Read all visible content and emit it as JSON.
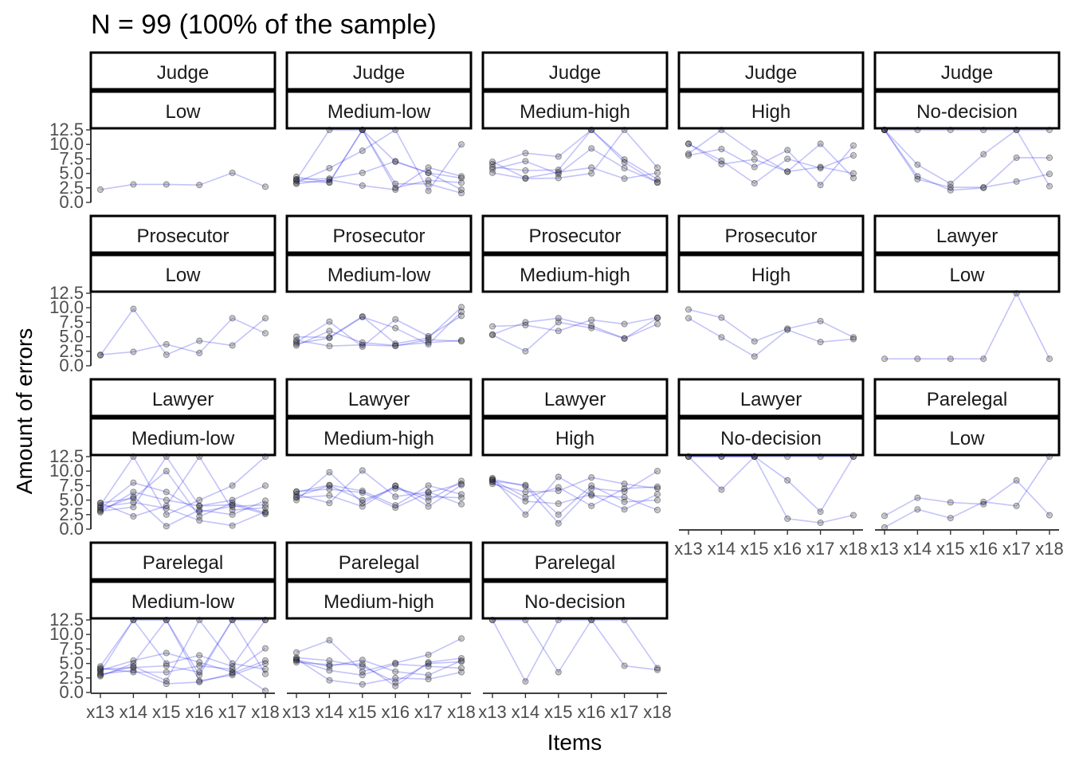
{
  "chart_data": {
    "type": "line",
    "title": "N = 99 (100% of the sample)",
    "xlabel": "Items",
    "ylabel": "Amount of errors",
    "x_ticks": [
      "x13",
      "x14",
      "x15",
      "x16",
      "x17",
      "x18"
    ],
    "y_ticks": [
      "0.0",
      "2.5",
      "5.0",
      "7.5",
      "10.0",
      "12.5"
    ],
    "ylim": [
      0,
      12.5
    ],
    "line_color": "#2828eb",
    "point_color": "#1e1e1e",
    "panels": [
      {
        "row": 0,
        "col": 0,
        "strip": [
          "Judge",
          "Low"
        ],
        "series": [
          [
            2.2,
            3.1,
            3.1,
            3.0,
            5.1,
            2.7
          ]
        ]
      },
      {
        "row": 0,
        "col": 1,
        "strip": [
          "Judge",
          "Medium-low"
        ],
        "series": [
          [
            4.4,
            3.5,
            12.5,
            7.0,
            5.1,
            4.2
          ],
          [
            3.9,
            12.5,
            12.5,
            3.2,
            3.2,
            1.6
          ],
          [
            3.4,
            5.9,
            8.9,
            12.5,
            2.0,
            10.0
          ],
          [
            4.0,
            4.1,
            5.1,
            7.1,
            5.1,
            2.2
          ],
          [
            3.2,
            3.9,
            2.9,
            2.2,
            6.0,
            4.5
          ],
          [
            3.7,
            3.4,
            12.5,
            2.5,
            3.8,
            3.4
          ]
        ]
      },
      {
        "row": 0,
        "col": 2,
        "strip": [
          "Judge",
          "Medium-high"
        ],
        "series": [
          [
            6.6,
            8.5,
            7.9,
            12.5,
            7.4,
            4.0
          ],
          [
            5.7,
            7.1,
            4.9,
            9.3,
            5.9,
            3.5
          ],
          [
            5.1,
            4.1,
            4.2,
            5.0,
            12.5,
            6.0
          ],
          [
            6.1,
            5.5,
            5.6,
            12.5,
            6.9,
            3.4
          ],
          [
            7.0,
            4.2,
            5.2,
            6.0,
            4.1,
            5.1
          ]
        ]
      },
      {
        "row": 0,
        "col": 3,
        "strip": [
          "Judge",
          "High"
        ],
        "series": [
          [
            10.1,
            6.6,
            7.4,
            5.3,
            10.1,
            4.2
          ],
          [
            8.1,
            9.2,
            6.1,
            9.0,
            3.0,
            9.8
          ],
          [
            8.4,
            12.5,
            8.5,
            5.3,
            6.1,
            5.0
          ],
          [
            10.1,
            7.2,
            3.3,
            7.5,
            5.9,
            8.1
          ]
        ]
      },
      {
        "row": 0,
        "col": 4,
        "strip": [
          "Judge",
          "No-decision"
        ],
        "series": [
          [
            12.5,
            12.5,
            12.5,
            12.5,
            12.5,
            12.5
          ],
          [
            12.5,
            6.5,
            3.2,
            8.3,
            12.5,
            2.8
          ],
          [
            12.5,
            4.5,
            2.1,
            2.5,
            7.7,
            7.7
          ],
          [
            12.5,
            4.0,
            2.6,
            2.6,
            3.6,
            4.9
          ]
        ]
      },
      {
        "row": 1,
        "col": 0,
        "strip": [
          "Prosecutor",
          "Low"
        ],
        "series": [
          [
            1.8,
            9.8,
            1.9,
            4.3,
            3.5,
            8.2
          ],
          [
            1.9,
            2.4,
            3.7,
            2.2,
            8.2,
            5.6
          ]
        ]
      },
      {
        "row": 1,
        "col": 1,
        "strip": [
          "Prosecutor",
          "Medium-low"
        ],
        "series": [
          [
            5.0,
            4.9,
            8.5,
            3.8,
            4.8,
            10.1
          ],
          [
            4.1,
            7.6,
            3.3,
            8.0,
            5.1,
            8.6
          ],
          [
            3.5,
            6.0,
            4.0,
            3.5,
            4.0,
            4.4
          ],
          [
            3.8,
            4.8,
            8.4,
            6.5,
            3.7,
            9.3
          ],
          [
            4.4,
            3.4,
            3.6,
            3.4,
            4.5,
            4.2
          ]
        ]
      },
      {
        "row": 1,
        "col": 2,
        "strip": [
          "Prosecutor",
          "Medium-high"
        ],
        "series": [
          [
            5.4,
            7.5,
            8.2,
            6.9,
            4.7,
            8.2
          ],
          [
            6.8,
            7.0,
            6.0,
            7.9,
            7.2,
            8.3
          ],
          [
            5.3,
            2.5,
            7.5,
            6.5,
            4.7,
            7.2
          ]
        ]
      },
      {
        "row": 1,
        "col": 3,
        "strip": [
          "Prosecutor",
          "High"
        ],
        "series": [
          [
            9.7,
            8.3,
            4.2,
            6.4,
            7.7,
            4.9
          ],
          [
            8.2,
            4.9,
            1.6,
            6.2,
            4.1,
            4.6
          ]
        ]
      },
      {
        "row": 1,
        "col": 4,
        "strip": [
          "Lawyer",
          "Low"
        ],
        "series": [
          [
            1.2,
            1.2,
            1.2,
            1.2,
            12.5,
            1.2
          ]
        ]
      },
      {
        "row": 2,
        "col": 0,
        "strip": [
          "Lawyer",
          "Medium-low"
        ],
        "series": [
          [
            4.1,
            12.5,
            2.5,
            5.0,
            7.5,
            12.5
          ],
          [
            3.6,
            8.0,
            6.4,
            3.0,
            3.9,
            4.2
          ],
          [
            4.5,
            5.3,
            10.0,
            2.2,
            4.5,
            2.8
          ],
          [
            3.1,
            3.8,
            12.5,
            4.0,
            5.0,
            7.5
          ],
          [
            3.8,
            4.6,
            3.6,
            1.5,
            0.6,
            3.0
          ],
          [
            3.3,
            5.6,
            0.5,
            3.3,
            2.5,
            4.9
          ],
          [
            4.5,
            2.2,
            4.0,
            12.5,
            3.3,
            3.7
          ],
          [
            2.9,
            6.4,
            5.0,
            4.0,
            4.2,
            2.6
          ]
        ]
      },
      {
        "row": 2,
        "col": 1,
        "strip": [
          "Lawyer",
          "Medium-high"
        ],
        "series": [
          [
            5.0,
            9.8,
            4.5,
            7.4,
            4.9,
            8.3
          ],
          [
            6.4,
            7.6,
            6.6,
            4.1,
            7.5,
            6.0
          ],
          [
            5.4,
            5.8,
            3.9,
            7.5,
            3.9,
            7.6
          ],
          [
            6.0,
            4.5,
            10.1,
            5.6,
            6.4,
            4.3
          ],
          [
            5.6,
            7.5,
            5.0,
            7.0,
            5.6,
            5.4
          ],
          [
            6.5,
            6.9,
            6.3,
            3.7,
            6.3,
            7.8
          ]
        ]
      },
      {
        "row": 2,
        "col": 2,
        "strip": [
          "Lawyer",
          "High"
        ],
        "series": [
          [
            8.6,
            7.4,
            1.0,
            7.0,
            6.5,
            10.0
          ],
          [
            8.1,
            4.8,
            4.4,
            6.0,
            3.4,
            6.0
          ],
          [
            7.8,
            6.4,
            6.6,
            8.9,
            7.8,
            7.0
          ],
          [
            8.8,
            2.5,
            9.0,
            5.8,
            5.5,
            3.3
          ],
          [
            8.3,
            7.6,
            2.5,
            7.5,
            4.7,
            5.0
          ],
          [
            8.5,
            5.5,
            7.2,
            4.0,
            7.0,
            7.3
          ]
        ]
      },
      {
        "row": 2,
        "col": 3,
        "strip": [
          "Lawyer",
          "No-decision"
        ],
        "series": [
          [
            12.5,
            12.5,
            12.5,
            12.5,
            12.5,
            12.5
          ],
          [
            12.5,
            6.8,
            12.5,
            8.4,
            3.0,
            12.5
          ],
          [
            12.5,
            12.5,
            12.5,
            1.8,
            1.1,
            2.4
          ]
        ]
      },
      {
        "row": 2,
        "col": 4,
        "strip": [
          "Parelegal",
          "Low"
        ],
        "series": [
          [
            2.3,
            5.4,
            4.6,
            4.3,
            8.4,
            2.4
          ],
          [
            0.3,
            3.4,
            1.9,
            4.7,
            4.0,
            12.5
          ]
        ]
      },
      {
        "row": 3,
        "col": 0,
        "strip": [
          "Parelegal",
          "Medium-low"
        ],
        "series": [
          [
            4.5,
            12.5,
            12.5,
            3.0,
            12.5,
            12.5
          ],
          [
            3.8,
            5.5,
            6.8,
            5.2,
            3.5,
            7.6
          ],
          [
            3.0,
            4.5,
            2.0,
            12.5,
            5.0,
            4.0
          ],
          [
            4.2,
            3.5,
            3.5,
            4.6,
            4.0,
            0.3
          ],
          [
            2.8,
            5.0,
            12.5,
            2.0,
            3.0,
            5.0
          ],
          [
            4.0,
            4.3,
            4.6,
            3.5,
            12.5,
            3.2
          ],
          [
            3.5,
            12.5,
            5.0,
            6.4,
            4.5,
            12.5
          ],
          [
            3.2,
            3.8,
            1.5,
            1.8,
            3.3,
            5.5
          ]
        ]
      },
      {
        "row": 3,
        "col": 1,
        "strip": [
          "Parelegal",
          "Medium-high"
        ],
        "series": [
          [
            6.9,
            9.0,
            3.6,
            5.1,
            6.5,
            9.3
          ],
          [
            5.6,
            4.5,
            5.6,
            3.6,
            3.0,
            5.5
          ],
          [
            6.0,
            5.5,
            4.5,
            1.8,
            5.0,
            5.3
          ],
          [
            5.5,
            3.8,
            3.0,
            4.9,
            4.5,
            4.2
          ],
          [
            5.8,
            2.1,
            1.4,
            2.5,
            2.3,
            3.5
          ],
          [
            5.2,
            4.8,
            4.9,
            1.1,
            5.2,
            5.9
          ]
        ]
      },
      {
        "row": 3,
        "col": 2,
        "strip": [
          "Parelegal",
          "No-decision"
        ],
        "series": [
          [
            12.5,
            12.5,
            3.5,
            12.5,
            12.5,
            4.2
          ],
          [
            12.5,
            1.9,
            12.5,
            12.5,
            4.6,
            3.9
          ]
        ]
      }
    ]
  }
}
